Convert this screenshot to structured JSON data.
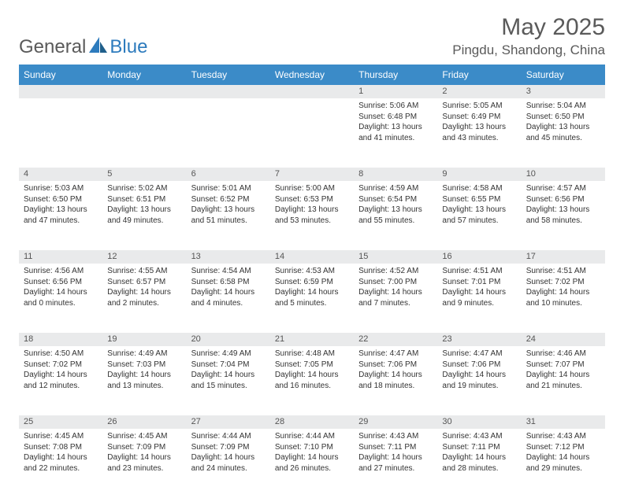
{
  "logo": {
    "word1": "General",
    "word2": "Blue"
  },
  "title": "May 2025",
  "location": "Pingdu, Shandong, China",
  "colors": {
    "header_bg": "#3b8bc8",
    "header_text": "#ffffff",
    "daynum_bg": "#e9eaeb",
    "text": "#333333",
    "logo_gray": "#5a5a5a",
    "background": "#ffffff"
  },
  "weekdays": [
    "Sunday",
    "Monday",
    "Tuesday",
    "Wednesday",
    "Thursday",
    "Friday",
    "Saturday"
  ],
  "weeks": [
    [
      null,
      null,
      null,
      null,
      {
        "n": "1",
        "sr": "5:06 AM",
        "ss": "6:48 PM",
        "dl": "13 hours and 41 minutes."
      },
      {
        "n": "2",
        "sr": "5:05 AM",
        "ss": "6:49 PM",
        "dl": "13 hours and 43 minutes."
      },
      {
        "n": "3",
        "sr": "5:04 AM",
        "ss": "6:50 PM",
        "dl": "13 hours and 45 minutes."
      }
    ],
    [
      {
        "n": "4",
        "sr": "5:03 AM",
        "ss": "6:50 PM",
        "dl": "13 hours and 47 minutes."
      },
      {
        "n": "5",
        "sr": "5:02 AM",
        "ss": "6:51 PM",
        "dl": "13 hours and 49 minutes."
      },
      {
        "n": "6",
        "sr": "5:01 AM",
        "ss": "6:52 PM",
        "dl": "13 hours and 51 minutes."
      },
      {
        "n": "7",
        "sr": "5:00 AM",
        "ss": "6:53 PM",
        "dl": "13 hours and 53 minutes."
      },
      {
        "n": "8",
        "sr": "4:59 AM",
        "ss": "6:54 PM",
        "dl": "13 hours and 55 minutes."
      },
      {
        "n": "9",
        "sr": "4:58 AM",
        "ss": "6:55 PM",
        "dl": "13 hours and 57 minutes."
      },
      {
        "n": "10",
        "sr": "4:57 AM",
        "ss": "6:56 PM",
        "dl": "13 hours and 58 minutes."
      }
    ],
    [
      {
        "n": "11",
        "sr": "4:56 AM",
        "ss": "6:56 PM",
        "dl": "14 hours and 0 minutes."
      },
      {
        "n": "12",
        "sr": "4:55 AM",
        "ss": "6:57 PM",
        "dl": "14 hours and 2 minutes."
      },
      {
        "n": "13",
        "sr": "4:54 AM",
        "ss": "6:58 PM",
        "dl": "14 hours and 4 minutes."
      },
      {
        "n": "14",
        "sr": "4:53 AM",
        "ss": "6:59 PM",
        "dl": "14 hours and 5 minutes."
      },
      {
        "n": "15",
        "sr": "4:52 AM",
        "ss": "7:00 PM",
        "dl": "14 hours and 7 minutes."
      },
      {
        "n": "16",
        "sr": "4:51 AM",
        "ss": "7:01 PM",
        "dl": "14 hours and 9 minutes."
      },
      {
        "n": "17",
        "sr": "4:51 AM",
        "ss": "7:02 PM",
        "dl": "14 hours and 10 minutes."
      }
    ],
    [
      {
        "n": "18",
        "sr": "4:50 AM",
        "ss": "7:02 PM",
        "dl": "14 hours and 12 minutes."
      },
      {
        "n": "19",
        "sr": "4:49 AM",
        "ss": "7:03 PM",
        "dl": "14 hours and 13 minutes."
      },
      {
        "n": "20",
        "sr": "4:49 AM",
        "ss": "7:04 PM",
        "dl": "14 hours and 15 minutes."
      },
      {
        "n": "21",
        "sr": "4:48 AM",
        "ss": "7:05 PM",
        "dl": "14 hours and 16 minutes."
      },
      {
        "n": "22",
        "sr": "4:47 AM",
        "ss": "7:06 PM",
        "dl": "14 hours and 18 minutes."
      },
      {
        "n": "23",
        "sr": "4:47 AM",
        "ss": "7:06 PM",
        "dl": "14 hours and 19 minutes."
      },
      {
        "n": "24",
        "sr": "4:46 AM",
        "ss": "7:07 PM",
        "dl": "14 hours and 21 minutes."
      }
    ],
    [
      {
        "n": "25",
        "sr": "4:45 AM",
        "ss": "7:08 PM",
        "dl": "14 hours and 22 minutes."
      },
      {
        "n": "26",
        "sr": "4:45 AM",
        "ss": "7:09 PM",
        "dl": "14 hours and 23 minutes."
      },
      {
        "n": "27",
        "sr": "4:44 AM",
        "ss": "7:09 PM",
        "dl": "14 hours and 24 minutes."
      },
      {
        "n": "28",
        "sr": "4:44 AM",
        "ss": "7:10 PM",
        "dl": "14 hours and 26 minutes."
      },
      {
        "n": "29",
        "sr": "4:43 AM",
        "ss": "7:11 PM",
        "dl": "14 hours and 27 minutes."
      },
      {
        "n": "30",
        "sr": "4:43 AM",
        "ss": "7:11 PM",
        "dl": "14 hours and 28 minutes."
      },
      {
        "n": "31",
        "sr": "4:43 AM",
        "ss": "7:12 PM",
        "dl": "14 hours and 29 minutes."
      }
    ]
  ],
  "labels": {
    "sunrise": "Sunrise: ",
    "sunset": "Sunset: ",
    "daylight": "Daylight: "
  }
}
